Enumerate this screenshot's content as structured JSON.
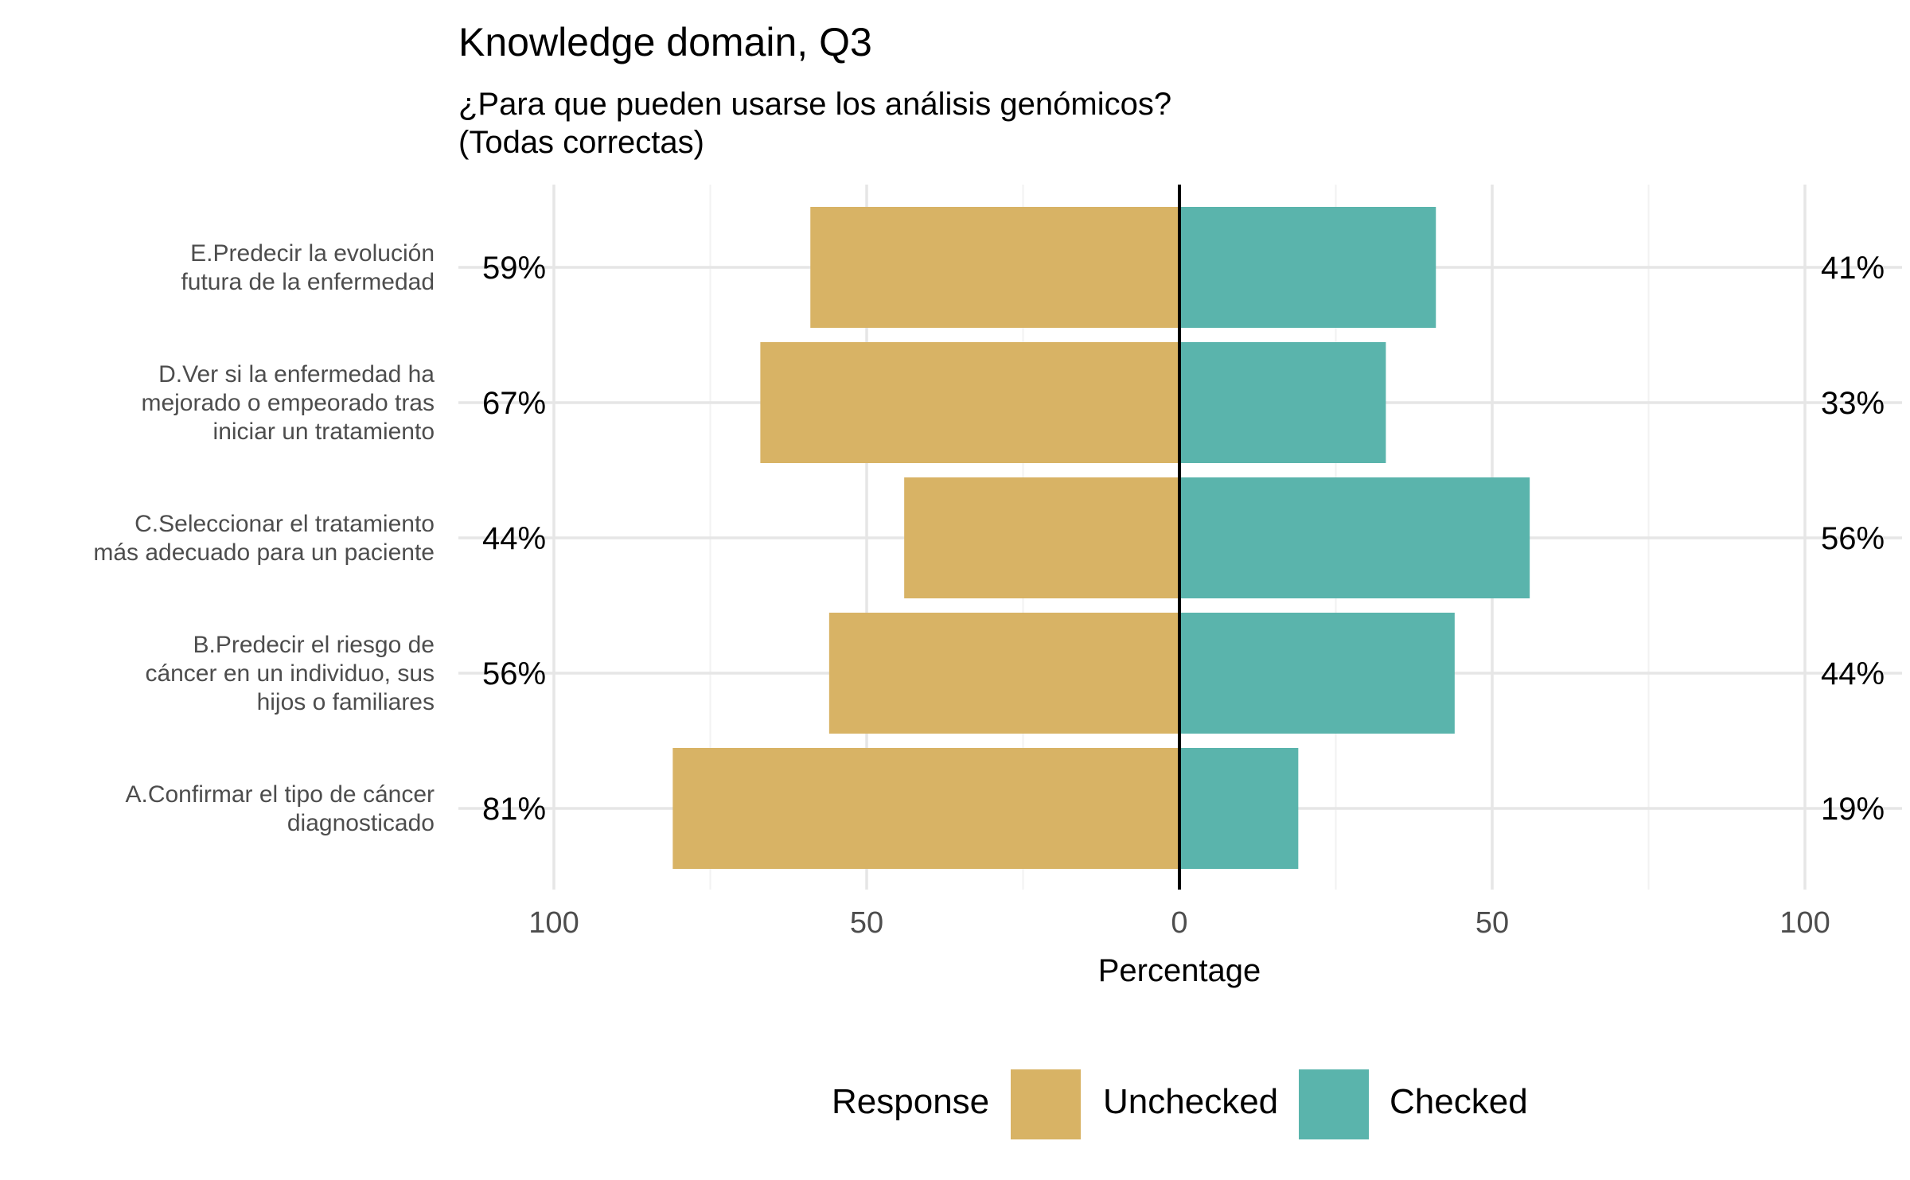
{
  "chart_data": {
    "type": "bar",
    "orientation": "horizontal-diverging",
    "title": "Knowledge domain, Q3",
    "subtitle": [
      "¿Para que pueden usarse los análisis genómicos?",
      "(Todas correctas)"
    ],
    "xlabel": "Percentage",
    "xlim": [
      -100,
      100
    ],
    "x_ticks": [
      -100,
      -75,
      -50,
      -25,
      0,
      25,
      50,
      75,
      100
    ],
    "x_tick_labels": [
      {
        "value": -100,
        "label": "100"
      },
      {
        "value": -50,
        "label": "50"
      },
      {
        "value": 0,
        "label": "0"
      },
      {
        "value": 50,
        "label": "50"
      },
      {
        "value": 100,
        "label": "100"
      }
    ],
    "grid": true,
    "categories": [
      [
        "E.Predecir la evolución",
        "futura de la enfermedad"
      ],
      [
        "D.Ver si la enfermedad ha",
        "mejorado o empeorado tras",
        "iniciar un tratamiento"
      ],
      [
        "C.Seleccionar el tratamiento",
        "más adecuado para un paciente"
      ],
      [
        "B.Predecir el riesgo de",
        "cáncer en un individuo, sus",
        "hijos o familiares"
      ],
      [
        "A.Confirmar el tipo de cáncer",
        "diagnosticado"
      ]
    ],
    "series": [
      {
        "name": "Unchecked",
        "color": "#d8b365",
        "values": [
          59,
          67,
          44,
          56,
          81
        ],
        "labels": [
          "59%",
          "67%",
          "44%",
          "56%",
          "81%"
        ]
      },
      {
        "name": "Checked",
        "color": "#5ab4ac",
        "values": [
          41,
          33,
          56,
          44,
          19
        ],
        "labels": [
          "41%",
          "33%",
          "56%",
          "44%",
          "19%"
        ]
      }
    ],
    "legend": {
      "title": "Response",
      "position": "bottom"
    }
  }
}
